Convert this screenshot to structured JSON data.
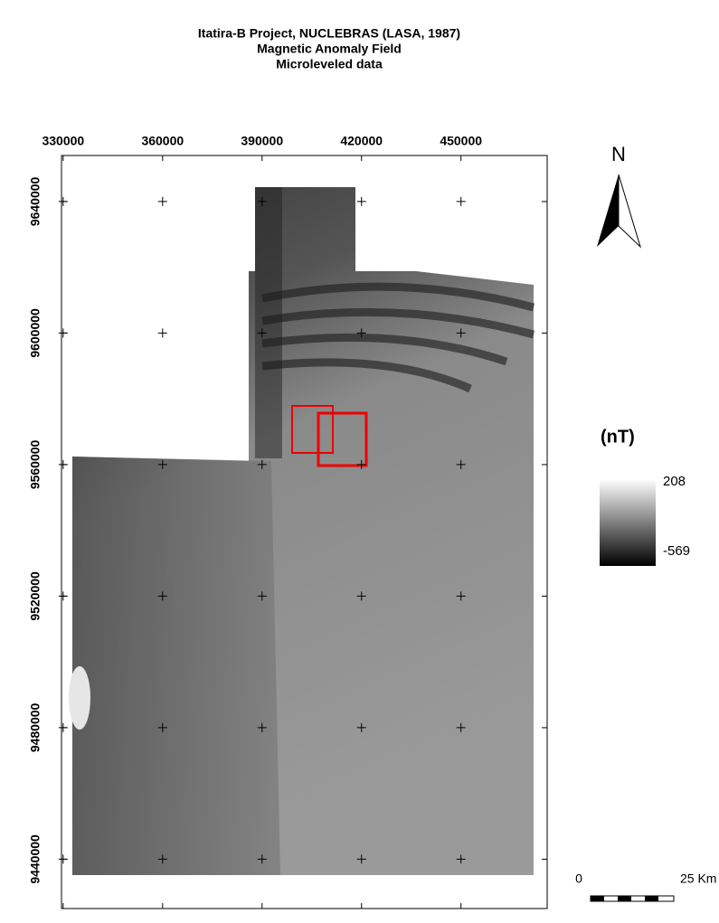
{
  "map": {
    "title": [
      "Itatira-B Project, NUCLEBRAS (LASA, 1987)",
      "Magnetic Anomaly Field",
      "Microleveled data"
    ],
    "xticks": [
      330000,
      360000,
      390000,
      420000,
      450000
    ],
    "yticks": [
      9640000,
      9600000,
      9560000,
      9520000,
      9480000,
      9440000
    ],
    "xlim": [
      329500,
      476000
    ],
    "ylim": [
      9425000,
      9654000
    ],
    "north_label": "N",
    "legend": {
      "unit": "(nT)",
      "max": 208,
      "min": -569
    },
    "scale_bar": {
      "start": 0,
      "end_label": "25 Km"
    }
  }
}
